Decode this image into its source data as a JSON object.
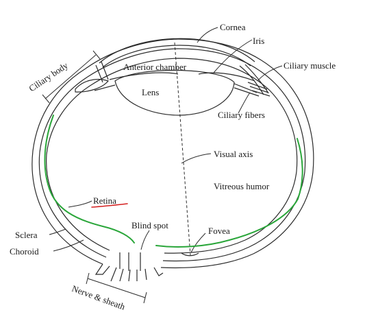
{
  "diagram": {
    "labels": {
      "cornea": "Cornea",
      "iris": "Iris",
      "ciliary_muscle": "Ciliary muscle",
      "ciliary_body": "Ciliary body",
      "anterior_chamber": "Anterior chamber",
      "lens": "Lens",
      "ciliary_fibers": "Ciliary fibers",
      "visual_axis": "Visual axis",
      "vitreous_humor": "Vitreous humor",
      "retina": "Retina",
      "blind_spot": "Blind spot",
      "fovea": "Fovea",
      "sclera": "Sclera",
      "choroid": "Choroid",
      "nerve_sheath": "Nerve & sheath"
    },
    "colors": {
      "outline": "#2a2a2a",
      "retina_highlight": "#2aa63a",
      "retina_underline": "#d42020"
    }
  }
}
